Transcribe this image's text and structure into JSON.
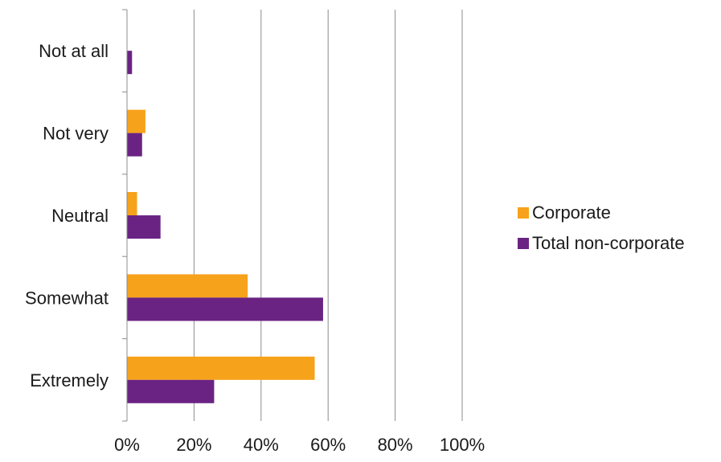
{
  "chart_data": {
    "type": "bar",
    "orientation": "horizontal",
    "categories": [
      "Not at all",
      "Not very",
      "Neutral",
      "Somewhat",
      "Extremely"
    ],
    "series": [
      {
        "name": "Corporate",
        "color": "#F7A21B",
        "values": [
          0,
          5.5,
          3,
          36,
          56
        ]
      },
      {
        "name": "Total non-corporate",
        "color": "#6A2383",
        "values": [
          1.5,
          4.5,
          10,
          58.5,
          26
        ]
      }
    ],
    "xlim": [
      0,
      100
    ],
    "xticks": [
      0,
      20,
      40,
      60,
      80,
      100
    ],
    "xtick_labels": [
      "0%",
      "20%",
      "40%",
      "60%",
      "80%",
      "100%"
    ],
    "grid": "vertical",
    "legend_position": "right"
  }
}
